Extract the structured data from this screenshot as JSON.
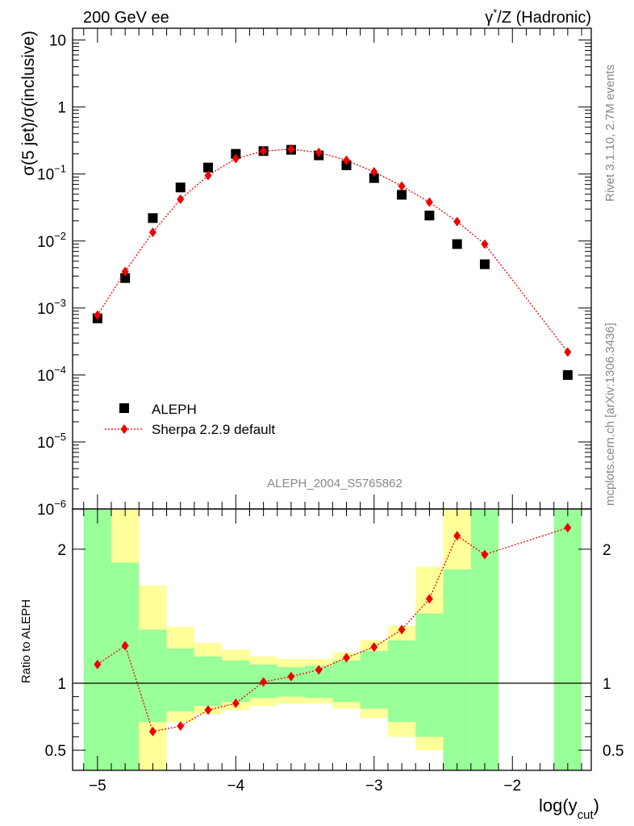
{
  "header": {
    "left_title": "200 GeV ee",
    "right_title_gamma": "γ",
    "right_title_star": "*",
    "right_title_rest": "/Z (Hadronic)"
  },
  "side_text": {
    "rivet": "Rivet 3.1.10,  2.7M events",
    "mcplots": "mcplots.cern.ch [arXiv:1306.3436]"
  },
  "analysis_id": "ALEPH_2004_S5765862",
  "colors": {
    "data": "#000000",
    "mc": "#ee0000",
    "band_inner": "#99ff99",
    "band_outer": "#ffff99"
  },
  "chart_data": [
    {
      "type": "scatter",
      "ylabel": "σ(5 jet)/σ(inclusive)",
      "log_y": true,
      "ylim": [
        1e-06,
        15
      ],
      "xlim": [
        -5.18,
        -1.43
      ],
      "y_ticks": [
        {
          "v": 10,
          "base": "10",
          "exp": ""
        },
        {
          "v": 1,
          "base": "1",
          "exp": ""
        },
        {
          "v": 0.1,
          "base": "10",
          "exp": "−1"
        },
        {
          "v": 0.01,
          "base": "10",
          "exp": "−2"
        },
        {
          "v": 0.001,
          "base": "10",
          "exp": "−3"
        },
        {
          "v": 0.0001,
          "base": "10",
          "exp": "−4"
        },
        {
          "v": 1e-05,
          "base": "10",
          "exp": "−5"
        },
        {
          "v": 1e-06,
          "base": "10",
          "exp": "−6"
        }
      ],
      "legend": [
        {
          "name": "ALEPH",
          "marker": "square"
        },
        {
          "name": "Sherpa 2.2.9 default",
          "marker": "diamond"
        }
      ],
      "series": [
        {
          "name": "ALEPH",
          "x": [
            -5.0,
            -4.8,
            -4.6,
            -4.4,
            -4.2,
            -4.0,
            -3.8,
            -3.6,
            -3.4,
            -3.2,
            -3.0,
            -2.8,
            -2.6,
            -2.4,
            -2.2,
            -1.6
          ],
          "y": [
            0.0007,
            0.0028,
            0.022,
            0.063,
            0.125,
            0.2,
            0.22,
            0.23,
            0.19,
            0.135,
            0.087,
            0.049,
            0.024,
            0.009,
            0.0045,
            0.0001
          ]
        },
        {
          "name": "Sherpa 2.2.9 default",
          "x": [
            -5.0,
            -4.8,
            -4.6,
            -4.4,
            -4.2,
            -4.0,
            -3.8,
            -3.6,
            -3.4,
            -3.2,
            -3.0,
            -2.8,
            -2.6,
            -2.4,
            -2.2,
            -1.6
          ],
          "y": [
            0.00078,
            0.0035,
            0.0135,
            0.042,
            0.095,
            0.17,
            0.22,
            0.235,
            0.21,
            0.16,
            0.108,
            0.066,
            0.038,
            0.0195,
            0.009,
            0.00022
          ]
        }
      ]
    },
    {
      "type": "line",
      "ylabel": "Ratio to ALEPH",
      "xlabel_base": "log(y",
      "xlabel_sub": "cut",
      "xlabel_close": ")",
      "ylim": [
        0.35,
        2.3
      ],
      "xlim": [
        -5.18,
        -1.43
      ],
      "x_ticks": [
        {
          "v": -5,
          "label": "−5"
        },
        {
          "v": -4,
          "label": "−4"
        },
        {
          "v": -3,
          "label": "−3"
        },
        {
          "v": -2,
          "label": "−2"
        }
      ],
      "y_ticks": [
        {
          "v": 2,
          "label": "2"
        },
        {
          "v": 1,
          "label": "1"
        },
        {
          "v": 0.5,
          "label": "0.5"
        }
      ],
      "bands": [
        {
          "x0": -5.1,
          "x1": -4.9,
          "inner": [
            0.35,
            2.3
          ],
          "outer": [
            0.35,
            2.3
          ]
        },
        {
          "x0": -4.9,
          "x1": -4.7,
          "inner": [
            0.35,
            1.9
          ],
          "outer": [
            0.35,
            2.3
          ]
        },
        {
          "x0": -4.7,
          "x1": -4.5,
          "inner": [
            0.71,
            1.4
          ],
          "outer": [
            0.35,
            1.73
          ]
        },
        {
          "x0": -4.5,
          "x1": -4.3,
          "inner": [
            0.79,
            1.26
          ],
          "outer": [
            0.71,
            1.42
          ]
        },
        {
          "x0": -4.3,
          "x1": -4.1,
          "inner": [
            0.83,
            1.2
          ],
          "outer": [
            0.77,
            1.3
          ]
        },
        {
          "x0": -4.1,
          "x1": -3.9,
          "inner": [
            0.86,
            1.17
          ],
          "outer": [
            0.8,
            1.25
          ]
        },
        {
          "x0": -3.9,
          "x1": -3.7,
          "inner": [
            0.89,
            1.14
          ],
          "outer": [
            0.83,
            1.2
          ]
        },
        {
          "x0": -3.7,
          "x1": -3.5,
          "inner": [
            0.9,
            1.12
          ],
          "outer": [
            0.85,
            1.18
          ]
        },
        {
          "x0": -3.5,
          "x1": -3.3,
          "inner": [
            0.89,
            1.13
          ],
          "outer": [
            0.85,
            1.18
          ]
        },
        {
          "x0": -3.3,
          "x1": -3.1,
          "inner": [
            0.86,
            1.17
          ],
          "outer": [
            0.81,
            1.23
          ]
        },
        {
          "x0": -3.1,
          "x1": -2.9,
          "inner": [
            0.81,
            1.24
          ],
          "outer": [
            0.74,
            1.32
          ]
        },
        {
          "x0": -2.9,
          "x1": -2.7,
          "inner": [
            0.71,
            1.32
          ],
          "outer": [
            0.6,
            1.43
          ]
        },
        {
          "x0": -2.7,
          "x1": -2.5,
          "inner": [
            0.6,
            1.52
          ],
          "outer": [
            0.5,
            1.87
          ]
        },
        {
          "x0": -2.5,
          "x1": -2.3,
          "inner": [
            0.35,
            1.85
          ],
          "outer": [
            0.35,
            2.3
          ]
        },
        {
          "x0": -2.3,
          "x1": -2.1,
          "inner": [
            0.35,
            2.3
          ],
          "outer": [
            0.35,
            2.3
          ]
        },
        {
          "x0": -1.7,
          "x1": -1.5,
          "inner": [
            0.35,
            2.3
          ],
          "outer": [
            0.35,
            2.3
          ]
        }
      ],
      "series": [
        {
          "name": "Sherpa 2.2.9 default",
          "x": [
            -5.0,
            -4.8,
            -4.6,
            -4.4,
            -4.2,
            -4.0,
            -3.8,
            -3.6,
            -3.4,
            -3.2,
            -3.0,
            -2.8,
            -2.6,
            -2.4,
            -2.2,
            -1.6
          ],
          "y": [
            1.14,
            1.28,
            0.64,
            0.68,
            0.8,
            0.85,
            1.01,
            1.05,
            1.1,
            1.19,
            1.27,
            1.4,
            1.63,
            2.1,
            1.96,
            2.16
          ]
        }
      ]
    }
  ]
}
